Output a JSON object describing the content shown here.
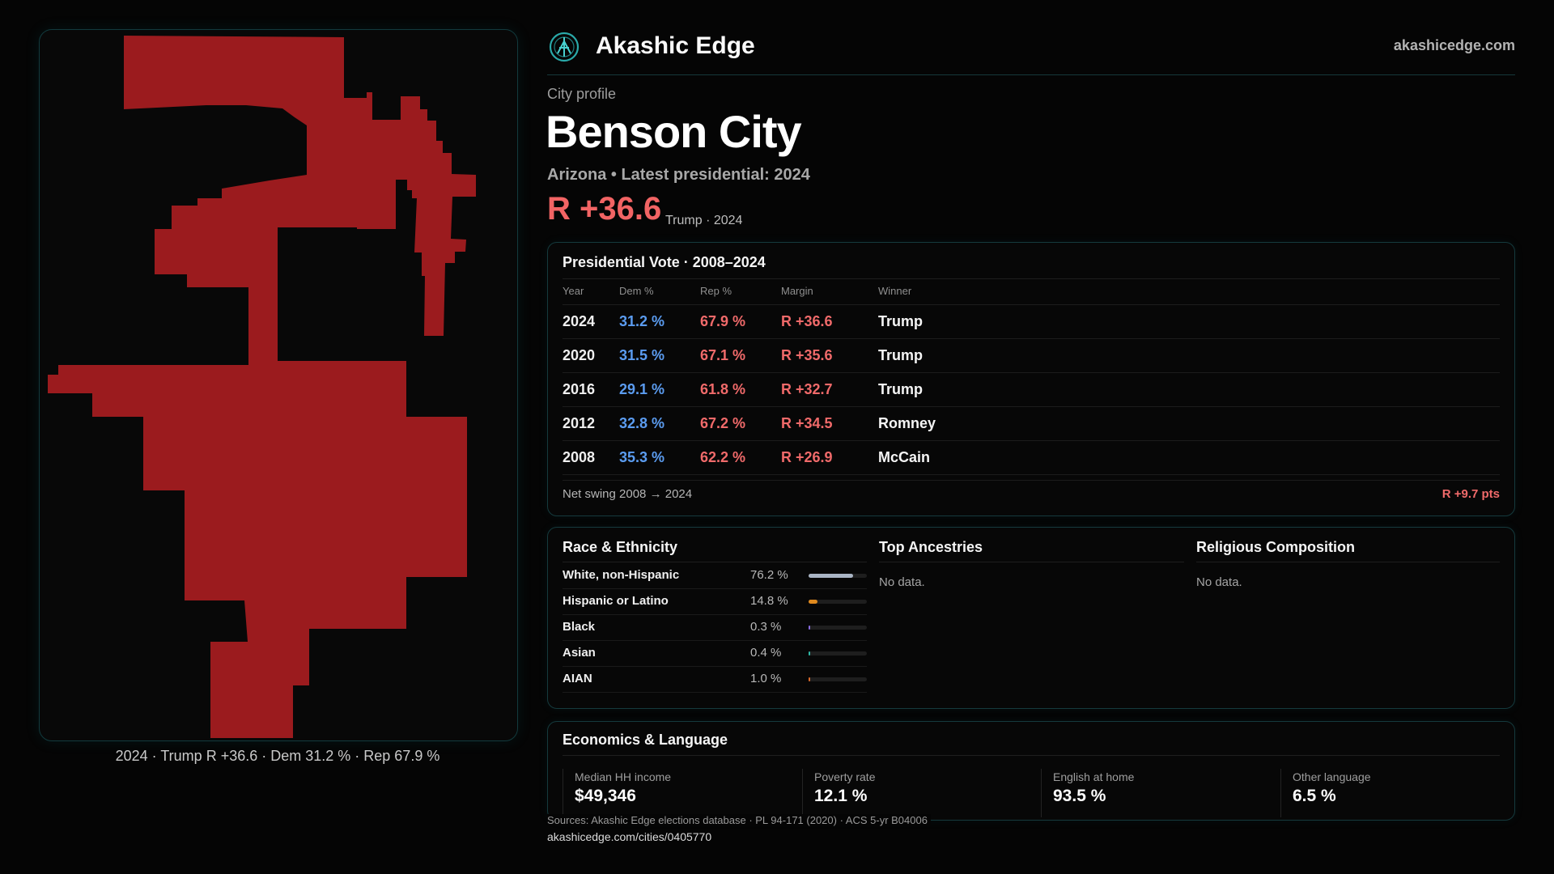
{
  "header": {
    "brand": "Akashic Edge",
    "site": "akashicedge.com",
    "logo_icon": "akashic-edge-logo-icon"
  },
  "profile": {
    "kicker": "City profile",
    "city": "Benson City",
    "subtitle": "Arizona • Latest presidential: 2024",
    "margin": "R +36.6",
    "margin_note": "Trump · 2024"
  },
  "map": {
    "caption": "2024 · Trump R +36.6 · Dem 31.2 % · Rep 67.9 %",
    "fill_color": "#9b1b1e"
  },
  "vote": {
    "title": "Presidential Vote · 2008–2024",
    "headers": {
      "year": "Year",
      "dem": "Dem %",
      "rep": "Rep %",
      "margin": "Margin",
      "winner": "Winner"
    },
    "rows": [
      {
        "year": "2024",
        "dem": "31.2 %",
        "rep": "67.9 %",
        "margin": "R +36.6",
        "winner": "Trump"
      },
      {
        "year": "2020",
        "dem": "31.5 %",
        "rep": "67.1 %",
        "margin": "R +35.6",
        "winner": "Trump"
      },
      {
        "year": "2016",
        "dem": "29.1 %",
        "rep": "61.8 %",
        "margin": "R +32.7",
        "winner": "Trump"
      },
      {
        "year": "2012",
        "dem": "32.8 %",
        "rep": "67.2 %",
        "margin": "R +34.5",
        "winner": "Romney"
      },
      {
        "year": "2008",
        "dem": "35.3 %",
        "rep": "62.2 %",
        "margin": "R +26.9",
        "winner": "McCain"
      }
    ],
    "swing_label": "Net swing 2008 → 2024",
    "swing_value": "R +9.7 pts"
  },
  "demographics": {
    "race_title": "Race & Ethnicity",
    "race": [
      {
        "name": "White, non-Hispanic",
        "pct": "76.2 %",
        "share": 0.762,
        "color": "#a9b4c4"
      },
      {
        "name": "Hispanic or Latino",
        "pct": "14.8 %",
        "share": 0.148,
        "color": "#e08a1e"
      },
      {
        "name": "Black",
        "pct": "0.3 %",
        "share": 0.003,
        "color": "#8a6ce0"
      },
      {
        "name": "Asian",
        "pct": "0.4 %",
        "share": 0.004,
        "color": "#2fb8a6"
      },
      {
        "name": "AIAN",
        "pct": "1.0 %",
        "share": 0.01,
        "color": "#d9692a"
      }
    ],
    "ancestry_title": "Top Ancestries",
    "ancestry_empty": "No data.",
    "religion_title": "Religious Composition",
    "religion_empty": "No data."
  },
  "economics": {
    "title": "Economics & Language",
    "stats": [
      {
        "label": "Median HH income",
        "value": "$49,346"
      },
      {
        "label": "Poverty rate",
        "value": "12.1 %"
      },
      {
        "label": "English at home",
        "value": "93.5 %"
      },
      {
        "label": "Other language",
        "value": "6.5 %"
      }
    ]
  },
  "footer": {
    "sources": "Sources: Akashic Edge elections database · PL 94-171 (2020) · ACS 5-yr B04006",
    "url": "akashicedge.com/cities/0405770"
  }
}
